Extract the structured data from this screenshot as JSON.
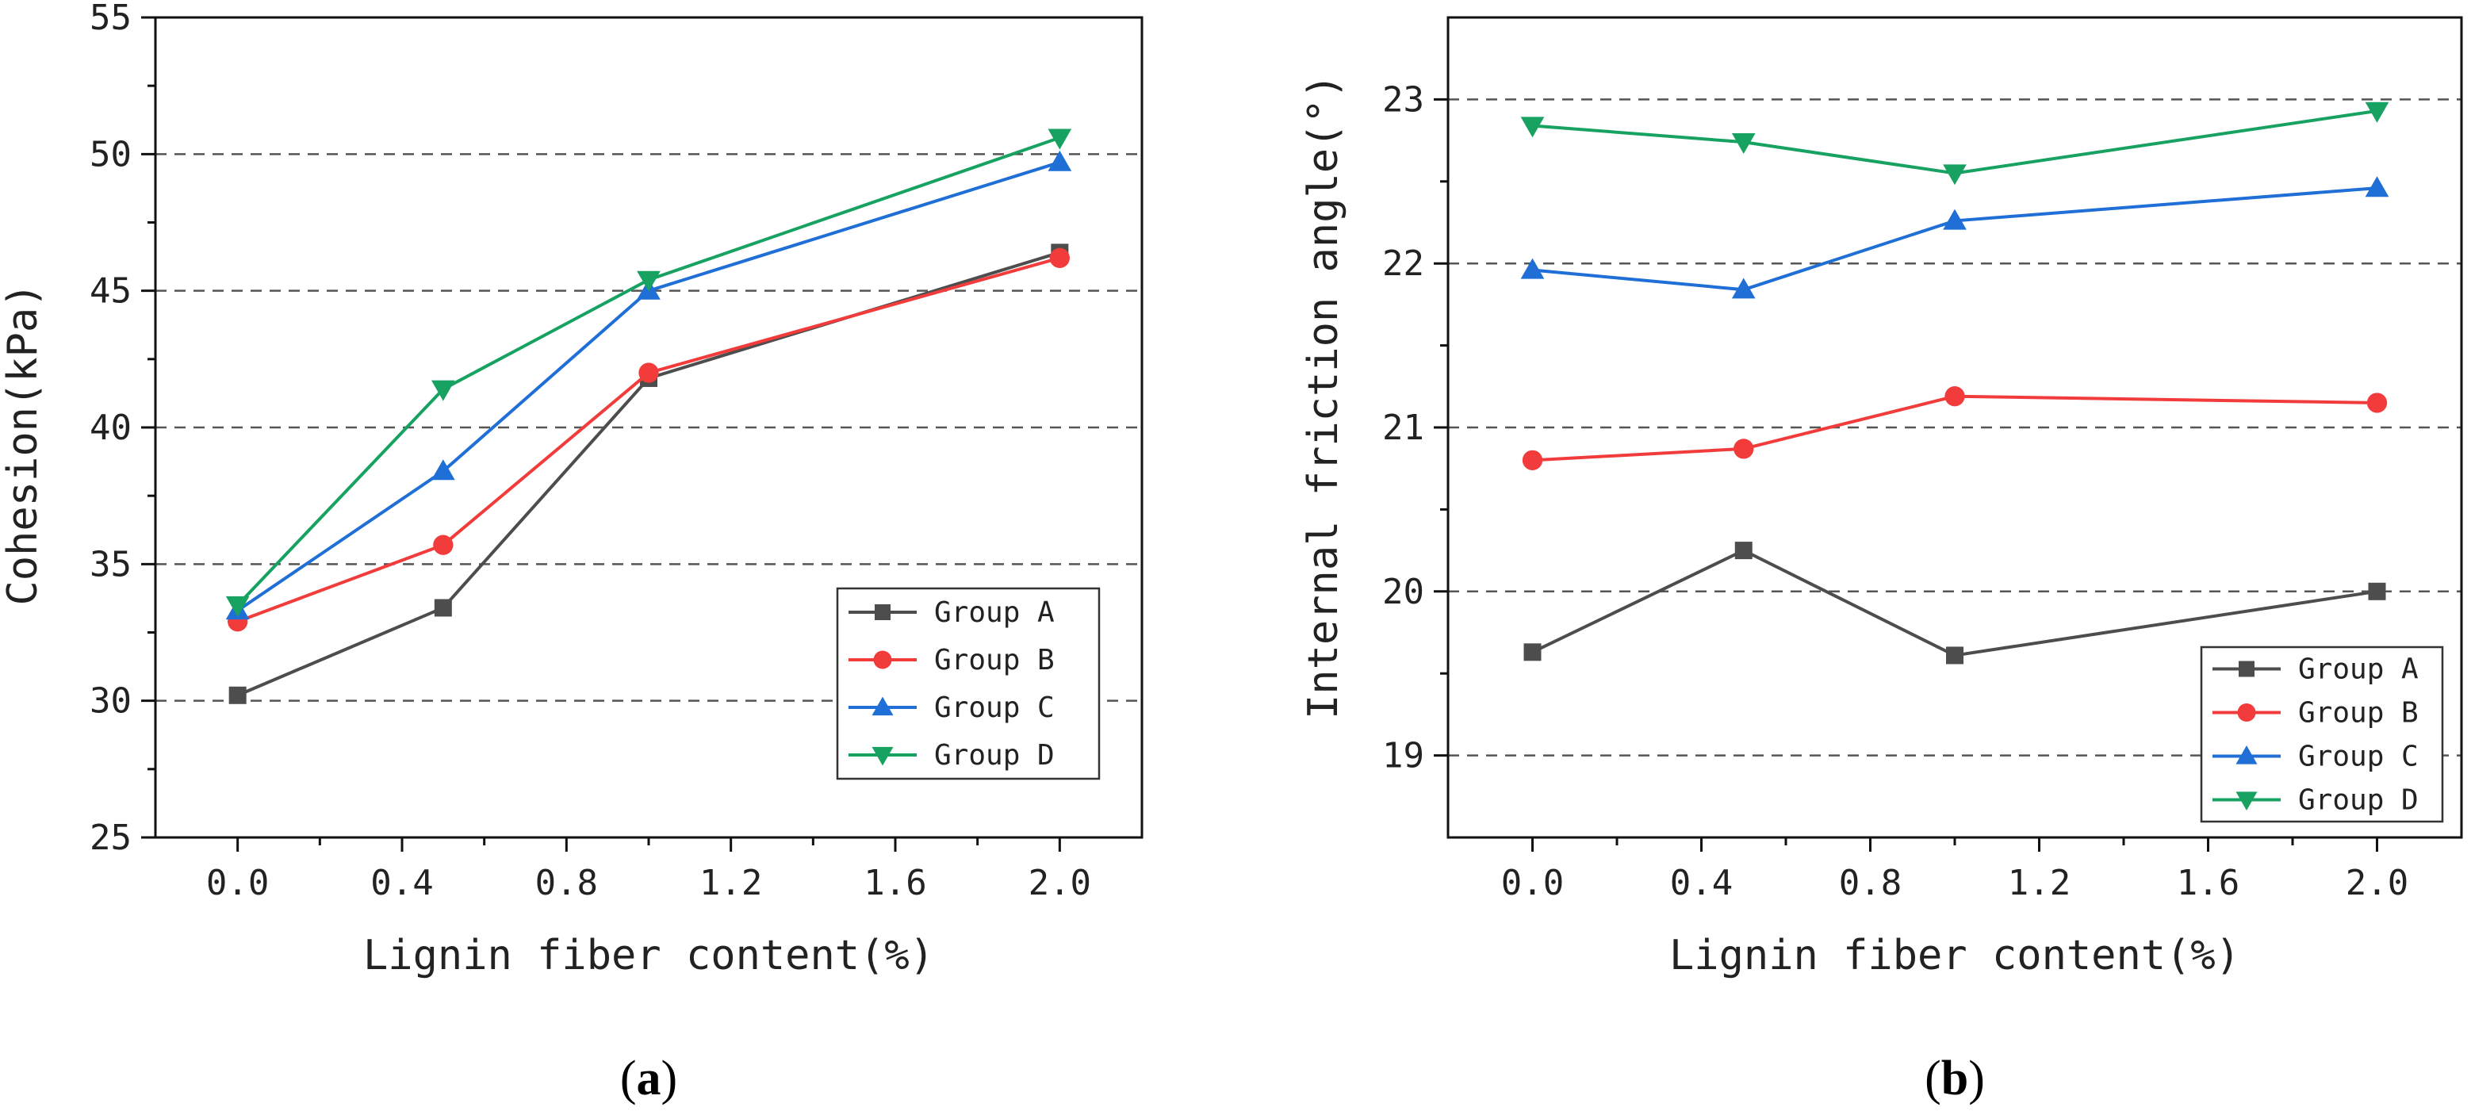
{
  "chart_data": [
    {
      "type": "line",
      "panel_label": "a",
      "xlabel": "Lignin fiber content(%)",
      "ylabel": "Cohesion(kPa)",
      "x": [
        0,
        0.5,
        1.0,
        2.0
      ],
      "x_ticks": [
        "0.0",
        "0.4",
        "0.8",
        "1.2",
        "1.6",
        "2.0"
      ],
      "y_ticks": [
        "25",
        "30",
        "35",
        "40",
        "45",
        "50",
        "55"
      ],
      "xlim": [
        -0.2,
        2.2
      ],
      "ylim": [
        25,
        55
      ],
      "grid": "horizontal dashed",
      "legend_position": "bottom-right",
      "series": [
        {
          "name": "Group A",
          "color": "#4d4d4d",
          "marker": "square",
          "values": [
            30.2,
            33.4,
            41.8,
            46.4
          ]
        },
        {
          "name": "Group B",
          "color": "#f23c3c",
          "marker": "circle",
          "values": [
            32.9,
            35.7,
            42.0,
            46.2
          ]
        },
        {
          "name": "Group C",
          "color": "#1f6fd6",
          "marker": "triangle-up",
          "values": [
            33.3,
            38.4,
            45.0,
            49.7
          ]
        },
        {
          "name": "Group D",
          "color": "#17a262",
          "marker": "triangle-down",
          "values": [
            33.5,
            41.4,
            45.4,
            50.6
          ]
        }
      ]
    },
    {
      "type": "line",
      "panel_label": "b",
      "xlabel": "Lignin fiber content(%)",
      "ylabel": "Internal friction angle(°)",
      "x": [
        0,
        0.5,
        1.0,
        2.0
      ],
      "x_ticks": [
        "0.0",
        "0.4",
        "0.8",
        "1.2",
        "1.6",
        "2.0"
      ],
      "y_ticks": [
        "19",
        "20",
        "21",
        "22",
        "23"
      ],
      "xlim": [
        -0.2,
        2.2
      ],
      "ylim": [
        18.5,
        23.5
      ],
      "grid": "horizontal dashed",
      "legend_position": "bottom-right",
      "series": [
        {
          "name": "Group A",
          "color": "#4d4d4d",
          "marker": "square",
          "values": [
            19.63,
            20.25,
            19.61,
            20.0
          ]
        },
        {
          "name": "Group B",
          "color": "#f23c3c",
          "marker": "circle",
          "values": [
            20.8,
            20.87,
            21.19,
            21.15
          ]
        },
        {
          "name": "Group C",
          "color": "#1f6fd6",
          "marker": "triangle-up",
          "values": [
            21.96,
            21.84,
            22.26,
            22.46
          ]
        },
        {
          "name": "Group D",
          "color": "#17a262",
          "marker": "triangle-down",
          "values": [
            22.84,
            22.74,
            22.55,
            22.93
          ]
        }
      ]
    }
  ]
}
